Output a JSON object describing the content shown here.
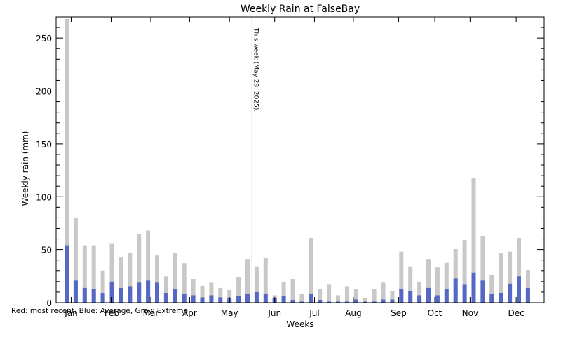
{
  "chart_data": {
    "type": "bar",
    "title": "Weekly Rain at FalseBay",
    "xlabel": "Weeks",
    "ylabel": "Weekly rain (mm)",
    "ylim": [
      0,
      270
    ],
    "yticks": [
      0,
      50,
      100,
      150,
      200,
      250
    ],
    "month_labels": [
      "Jan",
      "Feb",
      "Mar",
      "Apr",
      "May",
      "Jun",
      "Jul",
      "Aug",
      "Sep",
      "Oct",
      "Nov",
      "Dec"
    ],
    "month_week_index": [
      0.5,
      5,
      9.3,
      13.6,
      18,
      23,
      27.4,
      31.7,
      36.7,
      40.7,
      44.6,
      49.7
    ],
    "marker": {
      "label": "This week (May 28, 2025).",
      "week_index": 20.5
    },
    "footnote": "Red: most recent, Blue: Average, Gray: Extreme",
    "colors": {
      "extreme": "#c8c8c8",
      "average": "#5468c4",
      "recent": "#d40000",
      "marker": "#000000"
    },
    "series": [
      {
        "name": "Extreme",
        "values": [
          268,
          80,
          54,
          54,
          30,
          56,
          43,
          47,
          65,
          68,
          45,
          25,
          47,
          37,
          22,
          16,
          19,
          14,
          12,
          24,
          41,
          34,
          42,
          7,
          20,
          22,
          8,
          61,
          13,
          17,
          7,
          15,
          13,
          4,
          13,
          19,
          11,
          48,
          34,
          20,
          41,
          33,
          38,
          51,
          59,
          118,
          63,
          26,
          47,
          48,
          61,
          31
        ]
      },
      {
        "name": "Average",
        "values": [
          54,
          21,
          14,
          13,
          9,
          20,
          14,
          15,
          19,
          21,
          19,
          9,
          13,
          8,
          7,
          5,
          7,
          5,
          4,
          6,
          8,
          10,
          8,
          4,
          6,
          2,
          1,
          8,
          2,
          1,
          1,
          1,
          3,
          1,
          1,
          3,
          3,
          13,
          11,
          7,
          14,
          7,
          13,
          23,
          17,
          28,
          21,
          8,
          9,
          18,
          25,
          14
        ]
      }
    ]
  }
}
